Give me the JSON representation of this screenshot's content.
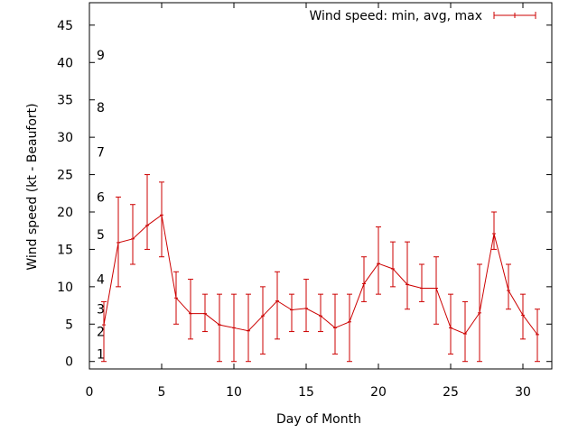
{
  "chart_data": {
    "type": "line",
    "title": "",
    "xlabel": "Day of Month",
    "ylabel": "Wind speed (kt - Beaufort)",
    "xlim": [
      0,
      32
    ],
    "ylim": [
      -1,
      48
    ],
    "xticks": [
      0,
      5,
      10,
      15,
      20,
      25,
      30
    ],
    "yticks": [
      0,
      5,
      10,
      15,
      20,
      25,
      30,
      35,
      40,
      45
    ],
    "grid": false,
    "legend_position": "top-right",
    "colors": {
      "series": "#cc0000",
      "axes": "#000000"
    },
    "beaufort_labels": [
      {
        "label": "1",
        "y": 1
      },
      {
        "label": "2",
        "y": 4
      },
      {
        "label": "3",
        "y": 7
      },
      {
        "label": "4",
        "y": 11
      },
      {
        "label": "5",
        "y": 17
      },
      {
        "label": "6",
        "y": 22
      },
      {
        "label": "7",
        "y": 28
      },
      {
        "label": "8",
        "y": 34
      },
      {
        "label": "9",
        "y": 41
      }
    ],
    "series": [
      {
        "name": "Wind speed: min, avg, max",
        "x": [
          1,
          2,
          3,
          4,
          5,
          6,
          7,
          8,
          9,
          10,
          11,
          12,
          13,
          14,
          15,
          16,
          17,
          18,
          19,
          20,
          21,
          22,
          23,
          24,
          25,
          26,
          27,
          28,
          29,
          30,
          31
        ],
        "min": [
          0,
          10,
          13,
          15,
          14,
          5,
          3,
          4,
          0,
          0,
          0,
          1,
          3,
          4,
          4,
          4,
          1,
          0,
          8,
          9,
          10,
          7,
          8,
          5,
          1,
          0,
          0,
          15,
          7,
          3,
          0
        ],
        "avg": [
          4.9,
          15.9,
          16.4,
          18.2,
          19.6,
          8.5,
          6.4,
          6.4,
          4.9,
          4.5,
          4.1,
          6.1,
          8.1,
          6.9,
          7.1,
          6.1,
          4.5,
          5.3,
          10.4,
          13.1,
          12.4,
          10.3,
          9.8,
          9.8,
          4.5,
          3.7,
          6.5,
          17.1,
          9.5,
          6.2,
          3.6
        ],
        "max": [
          8,
          22,
          21,
          25,
          24,
          12,
          11,
          9,
          9,
          9,
          9,
          10,
          12,
          9,
          11,
          9,
          9,
          9,
          14,
          18,
          16,
          16,
          13,
          14,
          9,
          8,
          13,
          20,
          13,
          9,
          7
        ]
      }
    ]
  }
}
